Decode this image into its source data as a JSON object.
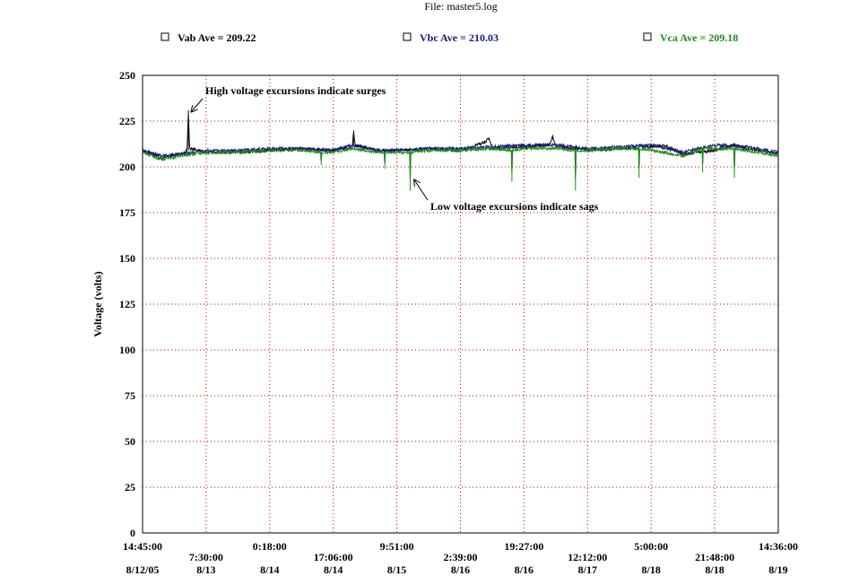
{
  "chart_data": {
    "type": "line",
    "title": "File: master5.log",
    "ylabel": "Voltage (volts)",
    "xlabel": "",
    "ylim": [
      0,
      250
    ],
    "yticks": [
      0,
      25,
      50,
      75,
      100,
      125,
      150,
      175,
      200,
      225,
      250
    ],
    "grid": true,
    "grid_style": "dotted",
    "colors": {
      "grid": "#cc0000",
      "Vab": "#111111",
      "Vbc": "#1a1a7a",
      "Vca": "#1f8a1f"
    },
    "legend": {
      "placement": "top",
      "items": [
        {
          "label": "Vab Ave = 209.22",
          "color": "#000000"
        },
        {
          "label": "Vbc Ave = 210.03",
          "color": "#1a1a7a"
        },
        {
          "label": "Vca Ave = 209.18",
          "color": "#1f8a1f"
        }
      ]
    },
    "xticks": [
      {
        "time": "14:45:00",
        "date": "8/12/05"
      },
      {
        "time": "7:30:00",
        "date": "8/13"
      },
      {
        "time": "0:18:00",
        "date": "8/14"
      },
      {
        "time": "17:06:00",
        "date": "8/14"
      },
      {
        "time": "9:51:00",
        "date": "8/15"
      },
      {
        "time": "2:39:00",
        "date": "8/16"
      },
      {
        "time": "19:27:00",
        "date": "8/16"
      },
      {
        "time": "12:12:00",
        "date": "8/17"
      },
      {
        "time": "5:00:00",
        "date": "8/18"
      },
      {
        "time": "21:48:00",
        "date": "8/18"
      },
      {
        "time": "14:36:00",
        "date": "8/19"
      }
    ],
    "x_domain": [
      0,
      10
    ],
    "series": [
      {
        "name": "Vab",
        "x": [
          0,
          0.3,
          0.6,
          0.7,
          0.72,
          0.74,
          1,
          1.5,
          2,
          2.5,
          3,
          3.3,
          3.32,
          3.34,
          3.7,
          4,
          4.5,
          5,
          5.2,
          5.4,
          5.45,
          5.5,
          6,
          6.4,
          6.45,
          6.5,
          6.8,
          7,
          7.5,
          8,
          8.2,
          8.5,
          9,
          9.3,
          9.5,
          10
        ],
        "values": [
          209,
          205,
          207,
          209,
          231,
          210,
          208,
          208,
          209,
          210,
          209,
          211,
          220,
          212,
          209,
          209,
          210,
          209,
          211,
          214,
          216,
          210,
          211,
          212,
          217,
          211,
          210,
          209,
          210,
          211,
          212,
          207,
          209,
          212,
          210,
          207
        ]
      },
      {
        "name": "Vbc",
        "x": [
          0,
          0.3,
          0.6,
          1,
          1.5,
          2,
          2.5,
          3,
          3.3,
          3.7,
          4,
          4.5,
          5,
          5.5,
          6,
          6.5,
          7,
          7.5,
          8,
          8.5,
          9,
          9.5,
          10
        ],
        "values": [
          209,
          206,
          207,
          209,
          209,
          210,
          210,
          209,
          212,
          209,
          209,
          210,
          210,
          211,
          212,
          212,
          210,
          211,
          212,
          208,
          212,
          211,
          208
        ]
      },
      {
        "name": "Vca",
        "x": [
          0,
          0.3,
          0.6,
          1,
          1.5,
          2,
          2.5,
          2.8,
          2.81,
          2.82,
          3,
          3.3,
          3.7,
          3.8,
          3.81,
          3.82,
          4,
          4.2,
          4.21,
          4.22,
          4.5,
          5,
          5.5,
          5.8,
          5.81,
          5.82,
          6,
          6.5,
          6.8,
          6.81,
          6.82,
          7,
          7.5,
          7.8,
          7.81,
          7.82,
          8,
          8.5,
          8.8,
          8.81,
          8.82,
          9,
          9.3,
          9.31,
          9.32,
          9.5,
          10
        ],
        "values": [
          208,
          204,
          206,
          208,
          208,
          209,
          209,
          208,
          201,
          208,
          208,
          210,
          208,
          208,
          199,
          208,
          208,
          208,
          187,
          208,
          209,
          209,
          210,
          209,
          192,
          209,
          210,
          210,
          209,
          187,
          209,
          209,
          210,
          210,
          194,
          210,
          209,
          206,
          210,
          197,
          210,
          210,
          210,
          194,
          210,
          209,
          206
        ]
      }
    ],
    "annotations": [
      {
        "text": "High voltage excursions indicate surges",
        "arrow_to": {
          "x": 0.72,
          "y": 231
        }
      },
      {
        "text": "Low voltage excursions indicate sags",
        "arrow_to": {
          "x": 4.21,
          "y": 195
        }
      }
    ]
  }
}
